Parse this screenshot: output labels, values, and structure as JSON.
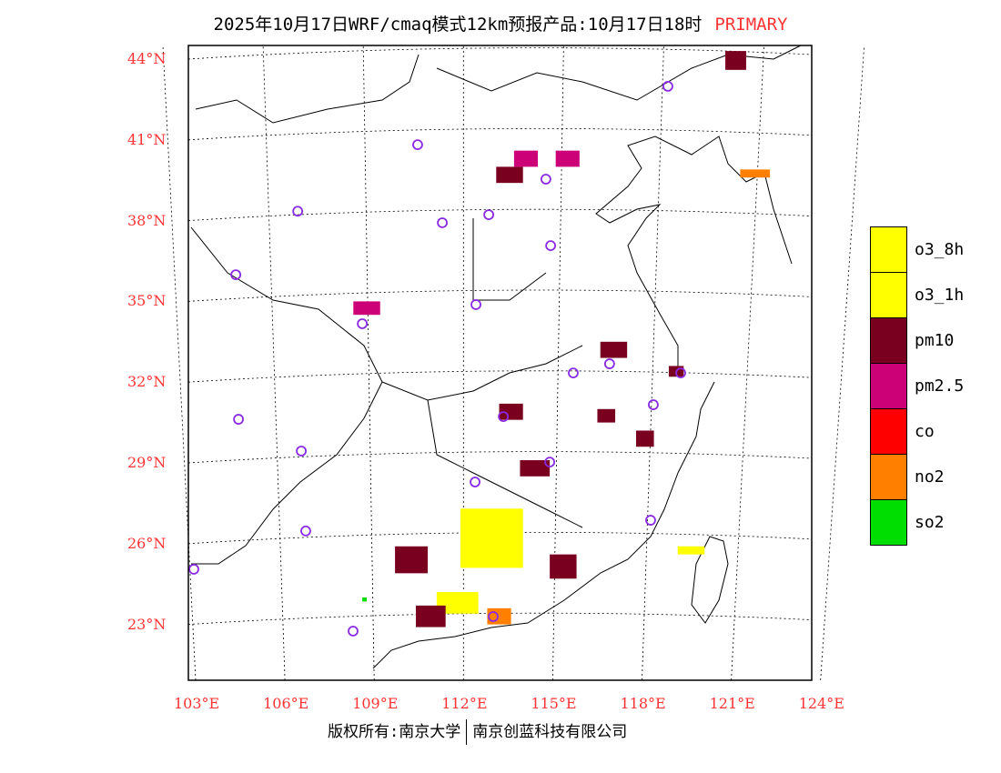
{
  "title": {
    "main": "2025年10月17日WRF/cmaq模式12km预报产品:10月17日18时",
    "tag": "PRIMARY"
  },
  "axes": {
    "lat_labels": [
      "44°N",
      "41°N",
      "38°N",
      "35°N",
      "32°N",
      "29°N",
      "26°N",
      "23°N"
    ],
    "lat_values": [
      44,
      41,
      38,
      35,
      32,
      29,
      26,
      23
    ],
    "lon_labels": [
      "103°E",
      "106°E",
      "109°E",
      "112°E",
      "115°E",
      "118°E",
      "121°E",
      "124°E"
    ],
    "lon_values": [
      103,
      106,
      109,
      112,
      115,
      118,
      121,
      124
    ]
  },
  "legend": [
    {
      "label": "o3_8h",
      "color": "#ffff00"
    },
    {
      "label": "o3_1h",
      "color": "#ffff00"
    },
    {
      "label": "pm10",
      "color": "#7a0020"
    },
    {
      "label": "pm2.5",
      "color": "#cc0077"
    },
    {
      "label": "co",
      "color": "#ff0000"
    },
    {
      "label": "no2",
      "color": "#ff7f00"
    },
    {
      "label": "so2",
      "color": "#00dd00"
    }
  ],
  "pollutant_areas": [
    {
      "type": "pm10",
      "lon": [
        113.1,
        114.0
      ],
      "lat": [
        39.4,
        40.0
      ]
    },
    {
      "type": "pm2.5",
      "lon": [
        113.7,
        114.5
      ],
      "lat": [
        40.0,
        40.6
      ]
    },
    {
      "type": "pm2.5",
      "lon": [
        115.1,
        115.9
      ],
      "lat": [
        40.0,
        40.6
      ]
    },
    {
      "type": "pm10",
      "lon": [
        120.8,
        121.5
      ],
      "lat": [
        43.6,
        44.3
      ]
    },
    {
      "type": "o3_1h",
      "lon": [
        111.9,
        114.0
      ],
      "lat": [
        25.1,
        27.3
      ]
    },
    {
      "type": "o3_1h",
      "lon": [
        111.1,
        112.5
      ],
      "lat": [
        23.4,
        24.2
      ]
    },
    {
      "type": "no2",
      "lon": [
        112.8,
        113.6
      ],
      "lat": [
        23.0,
        23.6
      ]
    },
    {
      "type": "pm10",
      "lon": [
        109.7,
        110.8
      ],
      "lat": [
        24.9,
        25.9
      ]
    },
    {
      "type": "pm10",
      "lon": [
        113.9,
        114.9
      ],
      "lat": [
        28.5,
        29.1
      ]
    },
    {
      "type": "pm10",
      "lon": [
        113.2,
        114.0
      ],
      "lat": [
        30.6,
        31.2
      ]
    },
    {
      "type": "pm10",
      "lon": [
        116.6,
        117.5
      ],
      "lat": [
        32.9,
        33.5
      ]
    },
    {
      "type": "pm10",
      "lon": [
        116.5,
        117.1
      ],
      "lat": [
        30.5,
        31.0
      ]
    },
    {
      "type": "pm2.5",
      "lon": [
        108.3,
        109.2
      ],
      "lat": [
        34.5,
        35.0
      ]
    },
    {
      "type": "no2",
      "lon": [
        121.3,
        122.3
      ],
      "lat": [
        39.6,
        39.9
      ]
    },
    {
      "type": "o3_1h",
      "lon": [
        119.2,
        120.1
      ],
      "lat": [
        25.6,
        25.9
      ]
    },
    {
      "type": "pm10",
      "lon": [
        114.9,
        115.8
      ],
      "lat": [
        24.7,
        25.6
      ]
    },
    {
      "type": "pm10",
      "lon": [
        110.4,
        111.4
      ],
      "lat": [
        22.9,
        23.7
      ]
    },
    {
      "type": "so2",
      "lon": [
        108.6,
        108.75
      ],
      "lat": [
        23.85,
        24.0
      ]
    },
    {
      "type": "pm10",
      "lon": [
        118.9,
        119.4
      ],
      "lat": [
        32.2,
        32.6
      ]
    },
    {
      "type": "pm10",
      "lon": [
        117.8,
        118.4
      ],
      "lat": [
        29.6,
        30.2
      ]
    }
  ],
  "stations": [
    [
      118.87,
      42.99
    ],
    [
      110.46,
      40.82
    ],
    [
      106.43,
      38.35
    ],
    [
      111.29,
      37.92
    ],
    [
      112.85,
      38.22
    ],
    [
      114.77,
      39.54
    ],
    [
      114.93,
      37.07
    ],
    [
      104.35,
      35.99
    ],
    [
      112.42,
      34.88
    ],
    [
      108.6,
      34.17
    ],
    [
      115.69,
      32.34
    ],
    [
      116.91,
      32.68
    ],
    [
      119.3,
      32.34
    ],
    [
      118.38,
      31.16
    ],
    [
      113.34,
      30.72
    ],
    [
      104.44,
      30.62
    ],
    [
      106.55,
      29.44
    ],
    [
      114.9,
      29.03
    ],
    [
      112.39,
      28.29
    ],
    [
      106.7,
      26.47
    ],
    [
      118.29,
      26.87
    ],
    [
      102.94,
      25.05
    ],
    [
      113.0,
      23.29
    ],
    [
      108.29,
      22.75
    ]
  ],
  "footer": {
    "left": "版权所有:南京大学",
    "right": "南京创蓝科技有限公司"
  }
}
